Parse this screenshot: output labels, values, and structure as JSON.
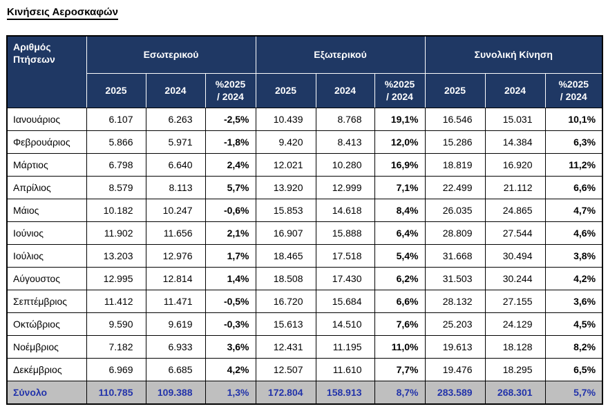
{
  "title": "Κινήσεις Αεροσκαφών",
  "table": {
    "corner_header": "Αριθμός Πτήσεων",
    "groups": [
      {
        "label": "Εσωτερικού"
      },
      {
        "label": "Εξωτερικού"
      },
      {
        "label": "Συνολική Κίνηση"
      }
    ],
    "sub_headers": {
      "year_current": "2025",
      "year_previous": "2024",
      "percent_change": "%2025\n/ 2024"
    },
    "rows": [
      {
        "month": "Ιανουάριος",
        "values": [
          "6.107",
          "6.263",
          "-2,5%",
          "10.439",
          "8.768",
          "19,1%",
          "16.546",
          "15.031",
          "10,1%"
        ]
      },
      {
        "month": "Φεβρουάριος",
        "values": [
          "5.866",
          "5.971",
          "-1,8%",
          "9.420",
          "8.413",
          "12,0%",
          "15.286",
          "14.384",
          "6,3%"
        ]
      },
      {
        "month": "Μάρτιος",
        "values": [
          "6.798",
          "6.640",
          "2,4%",
          "12.021",
          "10.280",
          "16,9%",
          "18.819",
          "16.920",
          "11,2%"
        ]
      },
      {
        "month": "Απρίλιος",
        "values": [
          "8.579",
          "8.113",
          "5,7%",
          "13.920",
          "12.999",
          "7,1%",
          "22.499",
          "21.112",
          "6,6%"
        ]
      },
      {
        "month": "Μάιος",
        "values": [
          "10.182",
          "10.247",
          "-0,6%",
          "15.853",
          "14.618",
          "8,4%",
          "26.035",
          "24.865",
          "4,7%"
        ]
      },
      {
        "month": "Ιούνιος",
        "values": [
          "11.902",
          "11.656",
          "2,1%",
          "16.907",
          "15.888",
          "6,4%",
          "28.809",
          "27.544",
          "4,6%"
        ]
      },
      {
        "month": "Ιούλιος",
        "values": [
          "13.203",
          "12.976",
          "1,7%",
          "18.465",
          "17.518",
          "5,4%",
          "31.668",
          "30.494",
          "3,8%"
        ]
      },
      {
        "month": "Αύγουστος",
        "values": [
          "12.995",
          "12.814",
          "1,4%",
          "18.508",
          "17.430",
          "6,2%",
          "31.503",
          "30.244",
          "4,2%"
        ]
      },
      {
        "month": "Σεπτέμβριος",
        "values": [
          "11.412",
          "11.471",
          "-0,5%",
          "16.720",
          "15.684",
          "6,6%",
          "28.132",
          "27.155",
          "3,6%"
        ]
      },
      {
        "month": "Οκτώβριος",
        "values": [
          "9.590",
          "9.619",
          "-0,3%",
          "15.613",
          "14.510",
          "7,6%",
          "25.203",
          "24.129",
          "4,5%"
        ]
      },
      {
        "month": "Νοέμβριος",
        "values": [
          "7.182",
          "6.933",
          "3,6%",
          "12.431",
          "11.195",
          "11,0%",
          "19.613",
          "18.128",
          "8,2%"
        ]
      },
      {
        "month": "Δεκέμβριος",
        "values": [
          "6.969",
          "6.685",
          "4,2%",
          "12.507",
          "11.610",
          "7,7%",
          "19.476",
          "18.295",
          "6,5%"
        ]
      }
    ],
    "total": {
      "label": "Σύνολο",
      "values": [
        "110.785",
        "109.388",
        "1,3%",
        "172.804",
        "158.913",
        "8,7%",
        "283.589",
        "268.301",
        "5,7%"
      ]
    }
  },
  "colors": {
    "header_bg": "#1F3864",
    "header_text": "#FFFFFF",
    "total_bg": "#BFBFBF",
    "total_text": "#2233AA"
  }
}
